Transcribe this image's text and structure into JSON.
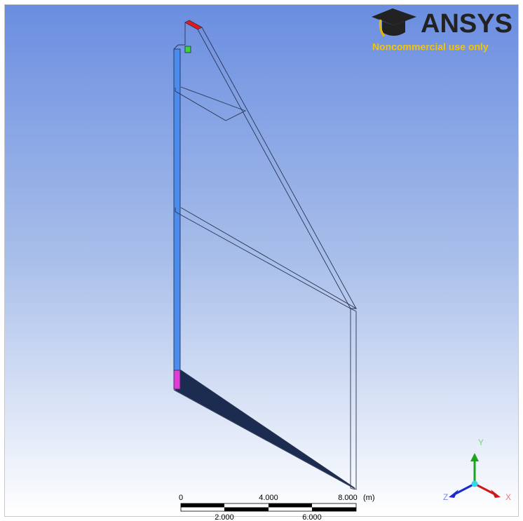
{
  "logo": {
    "brand": "ANSYS",
    "notice": "Noncommercial use only"
  },
  "scale_bar": {
    "top_labels": [
      "0",
      "4.000",
      "8.000"
    ],
    "unit": "(m)",
    "bottom_labels": [
      "2.000",
      "6.000"
    ]
  },
  "triad": {
    "y": "Y",
    "z": "Z",
    "x": "X"
  }
}
